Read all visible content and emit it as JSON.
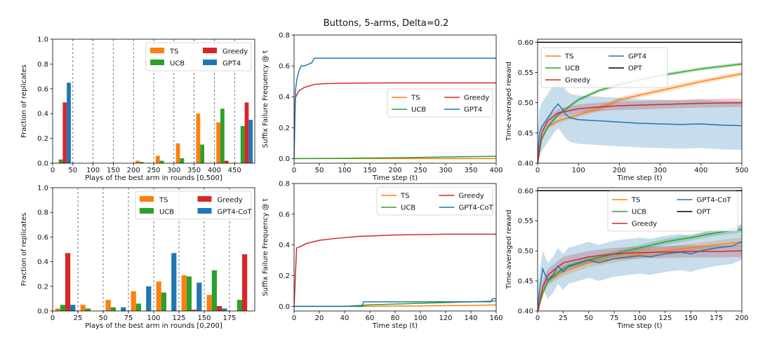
{
  "figure": {
    "title": "Buttons, 5-arms, Delta=0.2"
  },
  "colors": {
    "TS": "#ff7f0e",
    "UCB": "#2ca02c",
    "Greedy": "#d62728",
    "GPT": "#1f77b4",
    "OPT": "#000000"
  },
  "chart_data": [
    {
      "id": "hist-top",
      "type": "bar",
      "xlabel": "Plays of the best arm in rounds [0,500]",
      "ylabel": "Fraction of replicates",
      "xlim": [
        0,
        500
      ],
      "ylim": [
        0,
        1.0
      ],
      "xticks": [
        0,
        50,
        100,
        150,
        200,
        250,
        300,
        350,
        400,
        450
      ],
      "yticks": [
        0.0,
        0.2,
        0.4,
        0.6,
        0.8,
        1.0
      ],
      "separators": [
        50,
        100,
        150,
        200,
        250,
        300,
        350,
        400,
        450
      ],
      "bin_width": 50,
      "legend": {
        "position": "upper-center",
        "ncol": 2,
        "order": [
          "TS",
          "Greedy",
          "UCB",
          "GPT4"
        ]
      },
      "series": [
        {
          "name": "TS",
          "key": "TS",
          "values": [
            0.0,
            0.0,
            0.0,
            0.0,
            0.02,
            0.06,
            0.16,
            0.4,
            0.33,
            0.0
          ]
        },
        {
          "name": "UCB",
          "key": "UCB",
          "values": [
            0.03,
            0.0,
            0.0,
            0.0,
            0.01,
            0.02,
            0.04,
            0.15,
            0.44,
            0.3
          ]
        },
        {
          "name": "Greedy",
          "key": "Greedy",
          "values": [
            0.49,
            0.0,
            0.0,
            0.0,
            0.0,
            0.0,
            0.0,
            0.0,
            0.02,
            0.49
          ]
        },
        {
          "name": "GPT4",
          "key": "GPT",
          "values": [
            0.65,
            0.0,
            0.0,
            0.0,
            0.0,
            0.0,
            0.0,
            0.0,
            0.0,
            0.35
          ]
        }
      ]
    },
    {
      "id": "hist-bottom",
      "type": "bar",
      "xlabel": "Plays of the best arm in rounds [0,200]",
      "ylabel": "Fraction of replicates",
      "xlim": [
        0,
        200
      ],
      "ylim": [
        0,
        1.0
      ],
      "xticks": [
        0,
        25,
        50,
        75,
        100,
        125,
        150,
        175
      ],
      "yticks": [
        0.0,
        0.2,
        0.4,
        0.6,
        0.8,
        1.0
      ],
      "separators": [
        25,
        50,
        75,
        100,
        125,
        150,
        175
      ],
      "bin_width": 25,
      "legend": {
        "position": "upper-center",
        "ncol": 2,
        "order": [
          "TS",
          "Greedy",
          "UCB",
          "GPT4-CoT"
        ]
      },
      "series": [
        {
          "name": "TS",
          "key": "TS",
          "values": [
            0.02,
            0.05,
            0.09,
            0.16,
            0.24,
            0.29,
            0.13,
            0.0
          ]
        },
        {
          "name": "UCB",
          "key": "UCB",
          "values": [
            0.05,
            0.02,
            0.03,
            0.06,
            0.15,
            0.28,
            0.33,
            0.09
          ]
        },
        {
          "name": "Greedy",
          "key": "Greedy",
          "values": [
            0.47,
            0.0,
            0.0,
            0.0,
            0.0,
            0.01,
            0.04,
            0.46
          ]
        },
        {
          "name": "GPT4-CoT",
          "key": "GPT",
          "values": [
            0.05,
            0.0,
            0.03,
            0.2,
            0.47,
            0.23,
            0.02,
            0.0
          ]
        }
      ]
    },
    {
      "id": "sff-top",
      "type": "line",
      "xlabel": "Time step (t)",
      "ylabel": "Suffix Failure Frequency @ t",
      "xlim": [
        0,
        400
      ],
      "ylim": [
        -0.03,
        0.8
      ],
      "xticks": [
        0,
        50,
        100,
        150,
        200,
        250,
        300,
        350,
        400
      ],
      "yticks": [
        0.0,
        0.2,
        0.4,
        0.6,
        0.8
      ],
      "legend": {
        "position": "center-right",
        "ncol": 2,
        "order": [
          "TS",
          "Greedy",
          "UCB",
          "GPT4"
        ]
      },
      "series": [
        {
          "name": "TS",
          "key": "TS",
          "x": [
            0,
            100,
            200,
            300,
            400
          ],
          "y": [
            0.0,
            0.0,
            0.0,
            0.0,
            0.0
          ]
        },
        {
          "name": "UCB",
          "key": "UCB",
          "x": [
            0,
            100,
            200,
            300,
            400
          ],
          "y": [
            0.0,
            0.002,
            0.005,
            0.01,
            0.015
          ]
        },
        {
          "name": "Greedy",
          "key": "Greedy",
          "x": [
            0,
            2,
            5,
            10,
            20,
            30,
            40,
            60,
            100,
            200,
            300,
            400
          ],
          "y": [
            0.0,
            0.39,
            0.41,
            0.44,
            0.46,
            0.47,
            0.48,
            0.485,
            0.488,
            0.49,
            0.49,
            0.49
          ]
        },
        {
          "name": "GPT4",
          "key": "GPT",
          "x": [
            0,
            3,
            6,
            10,
            14,
            20,
            28,
            35,
            40,
            400
          ],
          "y": [
            0.0,
            0.45,
            0.52,
            0.57,
            0.6,
            0.6,
            0.61,
            0.62,
            0.65,
            0.65
          ]
        }
      ]
    },
    {
      "id": "sff-bottom",
      "type": "line",
      "xlabel": "Time step (t)",
      "ylabel": "Suffix Failure Frequency @ t",
      "xlim": [
        0,
        160
      ],
      "ylim": [
        -0.03,
        0.8
      ],
      "xticks": [
        0,
        20,
        40,
        60,
        80,
        100,
        120,
        140,
        160
      ],
      "yticks": [
        0.0,
        0.2,
        0.4,
        0.6,
        0.8
      ],
      "legend": {
        "position": "upper-right",
        "ncol": 2,
        "order": [
          "TS",
          "Greedy",
          "UCB",
          "GPT4-CoT"
        ]
      },
      "series": [
        {
          "name": "TS",
          "key": "TS",
          "x": [
            0,
            60,
            100,
            140,
            160
          ],
          "y": [
            0.0,
            0.0,
            0.003,
            0.006,
            0.01
          ]
        },
        {
          "name": "UCB",
          "key": "UCB",
          "x": [
            0,
            40,
            60,
            80,
            100,
            120,
            140,
            160
          ],
          "y": [
            0.0,
            0.0,
            0.01,
            0.015,
            0.02,
            0.025,
            0.03,
            0.035
          ]
        },
        {
          "name": "Greedy",
          "key": "Greedy",
          "x": [
            0,
            2,
            5,
            10,
            20,
            30,
            50,
            80,
            120,
            160
          ],
          "y": [
            0.0,
            0.38,
            0.39,
            0.41,
            0.43,
            0.44,
            0.455,
            0.465,
            0.47,
            0.47
          ]
        },
        {
          "name": "GPT4-CoT",
          "key": "GPT",
          "x": [
            0,
            54,
            55,
            156,
            157,
            160
          ],
          "y": [
            0.0,
            0.0,
            0.03,
            0.03,
            0.05,
            0.05
          ]
        }
      ]
    },
    {
      "id": "reward-top",
      "type": "line",
      "xlabel": "Time step (t)",
      "ylabel": "Time-averaged reward",
      "xlim": [
        0,
        500
      ],
      "ylim": [
        0.4,
        0.605
      ],
      "xticks": [
        0,
        100,
        200,
        300,
        400,
        500
      ],
      "yticks": [
        0.4,
        0.45,
        0.5,
        0.55,
        0.6
      ],
      "legend": {
        "position": "upper-left",
        "ncol": 2,
        "order": [
          "TS",
          "GPT4",
          "UCB",
          "OPT",
          "Greedy"
        ]
      },
      "series": [
        {
          "name": "TS",
          "key": "TS",
          "x": [
            0,
            10,
            25,
            50,
            100,
            150,
            200,
            300,
            400,
            500
          ],
          "y": [
            0.4,
            0.44,
            0.46,
            0.47,
            0.48,
            0.49,
            0.505,
            0.52,
            0.535,
            0.548
          ],
          "band": 0.004
        },
        {
          "name": "UCB",
          "key": "UCB",
          "x": [
            0,
            10,
            25,
            50,
            100,
            150,
            200,
            300,
            400,
            500
          ],
          "y": [
            0.4,
            0.44,
            0.46,
            0.48,
            0.505,
            0.52,
            0.53,
            0.545,
            0.556,
            0.564
          ],
          "band": 0.003
        },
        {
          "name": "Greedy",
          "key": "Greedy",
          "x": [
            0,
            10,
            25,
            50,
            100,
            150,
            200,
            300,
            400,
            500
          ],
          "y": [
            0.4,
            0.45,
            0.47,
            0.483,
            0.49,
            0.493,
            0.495,
            0.497,
            0.499,
            0.5
          ],
          "band": 0.007
        },
        {
          "name": "GPT4",
          "key": "GPT",
          "x": [
            0,
            5,
            10,
            20,
            30,
            40,
            50,
            60,
            70,
            80,
            100,
            150,
            200,
            250,
            300,
            350,
            400,
            450,
            500
          ],
          "y": [
            0.41,
            0.45,
            0.46,
            0.47,
            0.48,
            0.49,
            0.498,
            0.49,
            0.48,
            0.475,
            0.472,
            0.47,
            0.468,
            0.466,
            0.465,
            0.464,
            0.465,
            0.463,
            0.462
          ],
          "band": 0.04
        },
        {
          "name": "OPT",
          "key": "OPT",
          "x": [
            0,
            500
          ],
          "y": [
            0.6,
            0.6
          ]
        }
      ]
    },
    {
      "id": "reward-bottom",
      "type": "line",
      "xlabel": "Time step (t)",
      "ylabel": "Time-averaged reward",
      "xlim": [
        0,
        200
      ],
      "ylim": [
        0.4,
        0.605
      ],
      "xticks": [
        0,
        25,
        50,
        75,
        100,
        125,
        150,
        175,
        200
      ],
      "yticks": [
        0.4,
        0.45,
        0.5,
        0.55,
        0.6
      ],
      "legend": {
        "position": "upper-right",
        "ncol": 2,
        "order": [
          "TS",
          "GPT4-CoT",
          "UCB",
          "OPT",
          "Greedy"
        ]
      },
      "series": [
        {
          "name": "TS",
          "key": "TS",
          "x": [
            0,
            5,
            10,
            25,
            50,
            75,
            100,
            125,
            150,
            175,
            200
          ],
          "y": [
            0.4,
            0.43,
            0.45,
            0.465,
            0.48,
            0.487,
            0.495,
            0.5,
            0.505,
            0.51,
            0.515
          ],
          "band": 0.007
        },
        {
          "name": "UCB",
          "key": "UCB",
          "x": [
            0,
            5,
            10,
            25,
            50,
            75,
            100,
            125,
            150,
            175,
            200
          ],
          "y": [
            0.4,
            0.43,
            0.45,
            0.47,
            0.485,
            0.495,
            0.505,
            0.515,
            0.522,
            0.53,
            0.536
          ],
          "band": 0.005
        },
        {
          "name": "Greedy",
          "key": "Greedy",
          "x": [
            0,
            5,
            10,
            25,
            50,
            75,
            100,
            125,
            150,
            175,
            200
          ],
          "y": [
            0.4,
            0.44,
            0.46,
            0.48,
            0.49,
            0.495,
            0.497,
            0.498,
            0.499,
            0.499,
            0.5
          ],
          "band": 0.01
        },
        {
          "name": "GPT4-CoT",
          "key": "GPT",
          "x": [
            0,
            5,
            10,
            15,
            20,
            25,
            30,
            40,
            50,
            60,
            75,
            90,
            100,
            110,
            125,
            140,
            150,
            160,
            175,
            190,
            200
          ],
          "y": [
            0.41,
            0.47,
            0.45,
            0.46,
            0.475,
            0.465,
            0.475,
            0.48,
            0.485,
            0.48,
            0.487,
            0.49,
            0.492,
            0.49,
            0.495,
            0.498,
            0.495,
            0.5,
            0.505,
            0.508,
            0.515
          ],
          "band": 0.03
        },
        {
          "name": "OPT",
          "key": "OPT",
          "x": [
            0,
            200
          ],
          "y": [
            0.6,
            0.6
          ]
        }
      ]
    }
  ]
}
